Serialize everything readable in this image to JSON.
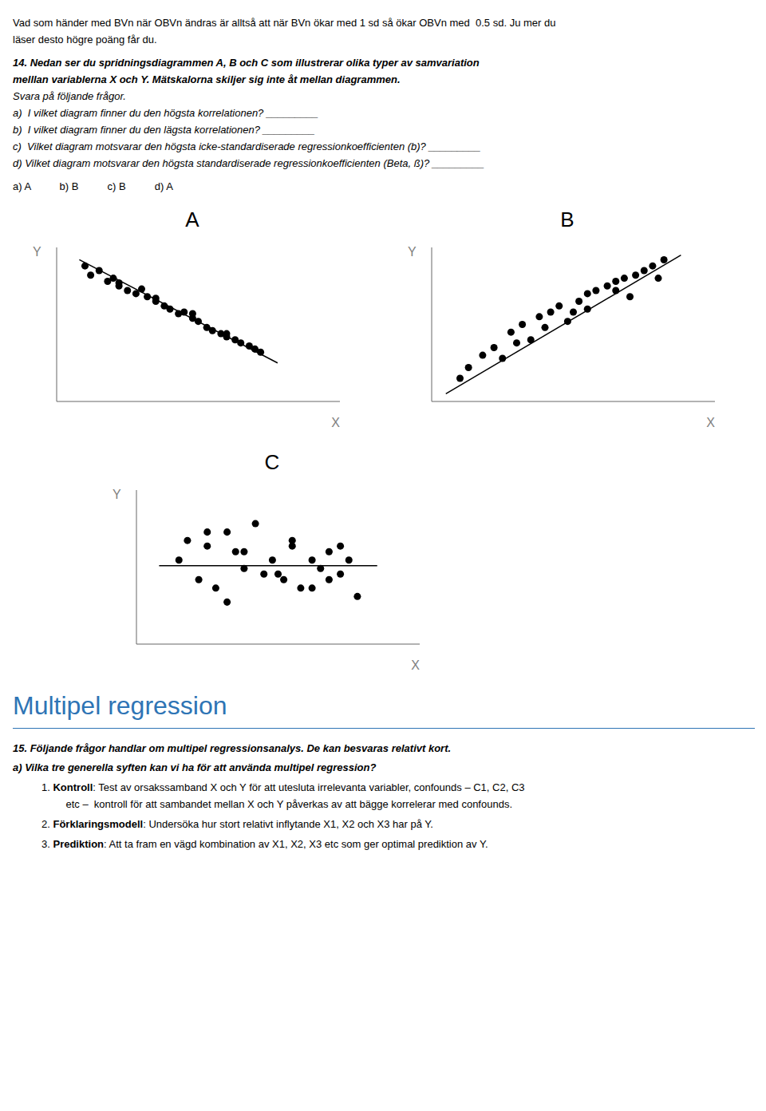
{
  "chart_data": [
    {
      "type": "scatter",
      "title": "A",
      "x_label": "X",
      "y_label": "Y",
      "xlim": [
        0,
        1
      ],
      "ylim": [
        0,
        1
      ],
      "tick_labels": false,
      "grid": false,
      "annotations": [
        "Vad som händer med BVn när OBVn ändras är alltså att när BVn ökar med 1 sd så ökar OBVn med  0.5 sd. Ju mer du",
        "läser desto högre poäng får du.",
        "14. Nedan ser du spridningsdiagrammen A, B och C som illustrerar olika typer av samvariation",
        "melllan variablerna X och Y. Mätskalorna skiljer sig inte åt mellan diagrammen.",
        "Svara på följande frågor.",
        "a)  I vilket diagram finner du den högsta korrelationen? _________",
        "b)  I vilket diagram finner du den lägsta korrelationen? _________",
        "c)  Vilket diagram motsvarar den högsta icke-standardiserade regressionkoefficienten (b)? _________",
        "d) Vilket diagram motsvarar den högsta standardiserade regressionkoefficienten (Beta, ß)? _________",
        "a) A          b) B          c) B          d) A"
      ],
      "series": [
        {
          "type": "scatter",
          "color": "#000000",
          "x": [
            0.1,
            0.12,
            0.15,
            0.18,
            0.2,
            0.22,
            0.25,
            0.28,
            0.3,
            0.32,
            0.35,
            0.38,
            0.4,
            0.43,
            0.45,
            0.48,
            0.5,
            0.53,
            0.55,
            0.58,
            0.6,
            0.63,
            0.65,
            0.68,
            0.7,
            0.22,
            0.35,
            0.48,
            0.6,
            0.72
          ],
          "values": [
            0.88,
            0.82,
            0.85,
            0.78,
            0.8,
            0.75,
            0.72,
            0.7,
            0.73,
            0.68,
            0.65,
            0.62,
            0.6,
            0.57,
            0.58,
            0.54,
            0.52,
            0.48,
            0.46,
            0.44,
            0.42,
            0.4,
            0.38,
            0.36,
            0.34,
            0.77,
            0.67,
            0.57,
            0.44,
            0.32
          ]
        },
        {
          "type": "line",
          "color": "#000000",
          "x": [
            0.08,
            0.78
          ],
          "values": [
            0.92,
            0.25
          ]
        }
      ]
    },
    {
      "type": "scatter",
      "title": "B",
      "x_label": "X",
      "y_label": "Y",
      "xlim": [
        0,
        1
      ],
      "ylim": [
        0,
        1
      ],
      "tick_labels": false,
      "grid": false,
      "series": [
        {
          "type": "scatter",
          "color": "#000000",
          "x": [
            0.1,
            0.13,
            0.18,
            0.22,
            0.28,
            0.32,
            0.35,
            0.38,
            0.42,
            0.45,
            0.48,
            0.52,
            0.55,
            0.58,
            0.62,
            0.65,
            0.68,
            0.72,
            0.75,
            0.78,
            0.82,
            0.25,
            0.4,
            0.55,
            0.65,
            0.8,
            0.3,
            0.5,
            0.7
          ],
          "values": [
            0.15,
            0.22,
            0.3,
            0.35,
            0.45,
            0.5,
            0.4,
            0.55,
            0.58,
            0.62,
            0.52,
            0.65,
            0.7,
            0.72,
            0.75,
            0.78,
            0.8,
            0.82,
            0.85,
            0.88,
            0.92,
            0.28,
            0.48,
            0.6,
            0.72,
            0.8,
            0.38,
            0.58,
            0.68
          ]
        },
        {
          "type": "line",
          "color": "#000000",
          "x": [
            0.05,
            0.88
          ],
          "values": [
            0.05,
            0.95
          ]
        }
      ]
    },
    {
      "type": "scatter",
      "title": "C",
      "x_label": "X",
      "y_label": "Y",
      "xlim": [
        0,
        1
      ],
      "ylim": [
        0.25,
        0.8
      ],
      "tick_labels": false,
      "grid": false,
      "annotations": [
        "Multipel regression",
        "15. Följande frågor handlar om multipel regressionsanalys. De kan besvaras relativt kort.",
        "a) Vilka tre generella syften kan vi ha för att använda multipel regression?",
        "1. Kontroll: Test av orsakssamband X och Y för att utesluta irrelevanta variabler, confounds – C1, C2, C3",
        "    etc –  kontroll för att sambandet mellan X och Y påverkas av att bägge korrelerar med confounds.",
        "2. Förklaringsmodell: Undersöka hur stort relativt inflytande X1, X2 och X3 har på Y.",
        "3. Prediktion: Att ta fram en vägd kombination av X1, X2, X3 etc som ger optimal prediktion av Y."
      ],
      "series": [
        {
          "type": "scatter",
          "color": "#000000",
          "x": [
            0.15,
            0.18,
            0.22,
            0.25,
            0.28,
            0.32,
            0.35,
            0.38,
            0.42,
            0.45,
            0.48,
            0.52,
            0.55,
            0.58,
            0.62,
            0.65,
            0.68,
            0.72,
            0.75,
            0.78,
            0.25,
            0.38,
            0.5,
            0.62,
            0.72,
            0.32,
            0.55,
            0.68
          ],
          "values": [
            0.55,
            0.62,
            0.48,
            0.6,
            0.45,
            0.65,
            0.58,
            0.52,
            0.68,
            0.5,
            0.55,
            0.48,
            0.6,
            0.45,
            0.55,
            0.52,
            0.58,
            0.5,
            0.55,
            0.42,
            0.65,
            0.58,
            0.5,
            0.45,
            0.6,
            0.4,
            0.62,
            0.48
          ]
        },
        {
          "type": "line",
          "color": "#000000",
          "x": [
            0.08,
            0.85
          ],
          "values": [
            0.53,
            0.53
          ]
        }
      ]
    }
  ]
}
